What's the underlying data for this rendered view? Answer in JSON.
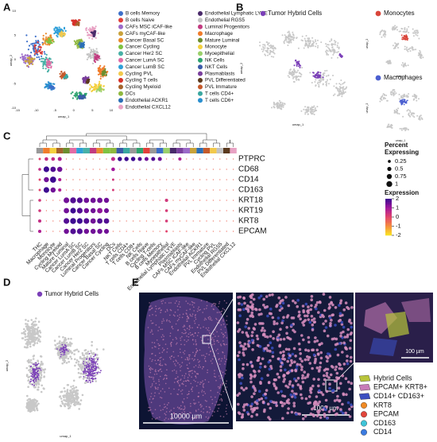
{
  "panel_a": {
    "label": "A",
    "x_axis": "umap_1",
    "y_axis": "umap_2",
    "xticks": [
      -15,
      -10,
      -5,
      0,
      5,
      10
    ],
    "yticks": [
      -10,
      -5,
      0,
      5,
      10
    ],
    "legend": [
      {
        "name": "B cells Memory",
        "color": "#3d6fc9"
      },
      {
        "name": "B cells Naive",
        "color": "#e2403a"
      },
      {
        "name": "CAFs MSC iCAF-like",
        "color": "#9b6ac8"
      },
      {
        "name": "CAFs myCAF-like",
        "color": "#c9a23a"
      },
      {
        "name": "Cancer Basal SC",
        "color": "#e98a2f"
      },
      {
        "name": "Cancer Cycling",
        "color": "#7fc241"
      },
      {
        "name": "Cancer Her2 SC",
        "color": "#48b0a6"
      },
      {
        "name": "Cancer LumA SC",
        "color": "#e26ba5"
      },
      {
        "name": "Cancer LumB SC",
        "color": "#2f9fd8"
      },
      {
        "name": "Cycling PVL",
        "color": "#f2c94c"
      },
      {
        "name": "Cycling T cells",
        "color": "#d7312a"
      },
      {
        "name": "Cycling Myeloid",
        "color": "#a5632c"
      },
      {
        "name": "DCs",
        "color": "#8fb83e"
      },
      {
        "name": "Endothelial ACKR1",
        "color": "#2b6fb6"
      },
      {
        "name": "Endothelial CXCL12",
        "color": "#e8a2c4"
      },
      {
        "name": "Endothelial Lymphatic LYVE",
        "color": "#4a2a6a"
      },
      {
        "name": "Endothelial RGS5",
        "color": "#c2c2c2"
      },
      {
        "name": "Luminal Progenitors",
        "color": "#c23b80"
      },
      {
        "name": "Macrophage",
        "color": "#f07c2b"
      },
      {
        "name": "Mature Luminal",
        "color": "#6b8e2f"
      },
      {
        "name": "Monocyte",
        "color": "#f4d03f"
      },
      {
        "name": "Myoepithelial",
        "color": "#9ad06a"
      },
      {
        "name": "NK Cells",
        "color": "#2ea36f"
      },
      {
        "name": "NKT Cells",
        "color": "#3b5ba8"
      },
      {
        "name": "Plasmablasts",
        "color": "#7a3f9d"
      },
      {
        "name": "PVL Differentiated",
        "color": "#5b3a1e"
      },
      {
        "name": "PVL Immature",
        "color": "#c55a2b"
      },
      {
        "name": "T cells CD4+",
        "color": "#3aa7a0"
      },
      {
        "name": "T cells CD6+",
        "color": "#2a8fcf"
      }
    ]
  },
  "panel_b": {
    "label": "B",
    "title": "Tumor Hybrid Cells",
    "color": "#7b3fb8",
    "x_axis": "umap_1",
    "y_axis": "umap_2",
    "insets": [
      {
        "title": "Monocytes",
        "color": "#d9453a"
      },
      {
        "title": "Macrophages",
        "color": "#4b5fd0"
      }
    ]
  },
  "panel_c": {
    "label": "C",
    "genes": [
      "PTPRC",
      "CD68",
      "CD14",
      "CD163",
      "KRT18",
      "KRT19",
      "KRT8",
      "EPCAM"
    ],
    "cell_types": [
      "THC",
      "Macrophage",
      "Monocyte",
      "Cycling Myeloid",
      "Mature Luminal",
      "Cancer LumA SC",
      "Cancer LumB SC",
      "Cancer Her2 SC",
      "Luminal Progenitors",
      "Cancer Basal SC",
      "Cancer Cycling",
      "DCs",
      "NKT Cells",
      "T cells CD4+",
      "T cells CD8+",
      "NK Cells",
      "B cells Naive",
      "Cycling T-cells",
      "B cells Memory",
      "Myoepithelial",
      "Endothelial Lymphatic LYVE",
      "Plasmablasts",
      "CAFs MSC iCAF-like",
      "CAFs myCAF-like",
      "Endothelial ACKR1",
      "PVL Immature",
      "Cycling PVL",
      "Endothelial RGS5",
      "PVL Differentiated",
      "Endothelial CXCL12"
    ],
    "percent": [
      [
        0.1,
        0.25,
        0.25,
        0.3,
        0.02,
        0.02,
        0.02,
        0.02,
        0.02,
        0.02,
        0.02,
        0.3,
        0.35,
        0.35,
        0.35,
        0.3,
        0.3,
        0.3,
        0.3,
        0.02,
        0.02,
        0.2,
        0.02,
        0.02,
        0.02,
        0.02,
        0.02,
        0.02,
        0.02,
        0.02
      ],
      [
        0.15,
        0.6,
        0.55,
        0.5,
        0.02,
        0.02,
        0.02,
        0.02,
        0.02,
        0.02,
        0.02,
        0.25,
        0.02,
        0.02,
        0.02,
        0.02,
        0.02,
        0.02,
        0.02,
        0.02,
        0.02,
        0.02,
        0.02,
        0.02,
        0.02,
        0.02,
        0.02,
        0.02,
        0.02,
        0.02
      ],
      [
        0.1,
        0.5,
        0.7,
        0.2,
        0.02,
        0.02,
        0.02,
        0.02,
        0.02,
        0.02,
        0.02,
        0.1,
        0.02,
        0.02,
        0.02,
        0.02,
        0.02,
        0.02,
        0.02,
        0.02,
        0.02,
        0.02,
        0.02,
        0.02,
        0.02,
        0.02,
        0.02,
        0.02,
        0.02,
        0.02
      ],
      [
        0.1,
        0.6,
        0.5,
        0.2,
        0.02,
        0.02,
        0.02,
        0.02,
        0.02,
        0.02,
        0.02,
        0.1,
        0.02,
        0.02,
        0.02,
        0.02,
        0.02,
        0.02,
        0.02,
        0.02,
        0.02,
        0.02,
        0.02,
        0.02,
        0.02,
        0.02,
        0.02,
        0.02,
        0.02,
        0.02
      ],
      [
        0.15,
        0.02,
        0.02,
        0.02,
        0.6,
        0.65,
        0.6,
        0.55,
        0.55,
        0.55,
        0.5,
        0.02,
        0.02,
        0.02,
        0.02,
        0.02,
        0.02,
        0.02,
        0.02,
        0.2,
        0.02,
        0.02,
        0.02,
        0.02,
        0.02,
        0.02,
        0.02,
        0.02,
        0.02,
        0.02
      ],
      [
        0.15,
        0.02,
        0.02,
        0.02,
        0.55,
        0.6,
        0.6,
        0.5,
        0.5,
        0.55,
        0.45,
        0.02,
        0.02,
        0.02,
        0.02,
        0.02,
        0.02,
        0.02,
        0.02,
        0.15,
        0.02,
        0.02,
        0.02,
        0.02,
        0.02,
        0.02,
        0.02,
        0.02,
        0.02,
        0.02
      ],
      [
        0.2,
        0.02,
        0.02,
        0.02,
        0.6,
        0.65,
        0.6,
        0.6,
        0.55,
        0.55,
        0.55,
        0.02,
        0.02,
        0.02,
        0.02,
        0.02,
        0.02,
        0.02,
        0.02,
        0.15,
        0.02,
        0.02,
        0.02,
        0.02,
        0.02,
        0.02,
        0.02,
        0.02,
        0.02,
        0.02
      ],
      [
        0.2,
        0.02,
        0.02,
        0.02,
        0.5,
        0.6,
        0.6,
        0.5,
        0.5,
        0.5,
        0.45,
        0.02,
        0.02,
        0.02,
        0.02,
        0.02,
        0.02,
        0.02,
        0.02,
        0.1,
        0.02,
        0.02,
        0.02,
        0.02,
        0.02,
        0.02,
        0.02,
        0.02,
        0.02,
        0.02
      ]
    ],
    "expression": [
      [
        0,
        0.5,
        0.5,
        0.8,
        -0.5,
        -0.5,
        -0.5,
        -0.5,
        -0.5,
        -0.5,
        -0.5,
        0.6,
        2,
        2,
        2,
        1.8,
        1.5,
        1.8,
        1.5,
        -0.5,
        -0.5,
        0.8,
        -0.5,
        -0.5,
        -0.5,
        -0.5,
        -0.5,
        -0.5,
        -0.5,
        -0.5
      ],
      [
        0.5,
        2,
        1.8,
        1.5,
        -0.5,
        -0.5,
        -0.5,
        -0.5,
        -0.5,
        -0.5,
        -0.5,
        1,
        -0.5,
        -0.5,
        -0.5,
        -0.5,
        -0.5,
        -0.5,
        -0.5,
        -0.5,
        -0.5,
        -0.5,
        -0.5,
        -0.5,
        -0.5,
        -0.5,
        -0.5,
        -0.5,
        -0.5,
        -0.5
      ],
      [
        0,
        1.5,
        2,
        0.8,
        -0.5,
        -0.5,
        -0.5,
        -0.5,
        -0.5,
        -0.5,
        -0.5,
        0.3,
        -0.5,
        -0.5,
        -0.5,
        -0.5,
        -0.5,
        -0.5,
        -0.5,
        -0.5,
        -0.5,
        -0.5,
        -0.5,
        -0.5,
        -0.5,
        -0.5,
        -0.5,
        -0.5,
        -0.5,
        -0.5
      ],
      [
        0,
        2,
        1.5,
        0.8,
        -0.5,
        -0.5,
        -0.5,
        -0.5,
        -0.5,
        -0.5,
        -0.5,
        0.2,
        -0.5,
        -0.5,
        -0.5,
        -0.5,
        -0.5,
        -0.5,
        -0.5,
        -0.5,
        -0.5,
        -0.5,
        -0.5,
        -0.5,
        -0.5,
        -0.5,
        -0.5,
        -0.5,
        -0.5,
        -0.5
      ],
      [
        0.3,
        -0.5,
        -0.5,
        -0.5,
        1.5,
        1.8,
        1.8,
        1.5,
        1.5,
        1.5,
        1.5,
        -0.5,
        -0.5,
        -0.5,
        -0.5,
        -0.5,
        -0.5,
        -0.5,
        -0.5,
        0.3,
        -0.5,
        -0.5,
        -0.5,
        -0.5,
        -0.5,
        -0.5,
        -0.5,
        -0.5,
        -0.5,
        -0.5
      ],
      [
        0.3,
        -0.5,
        -0.5,
        -0.5,
        1.5,
        2,
        1.8,
        1.5,
        1.5,
        1.2,
        1.5,
        -0.5,
        -0.5,
        -0.5,
        -0.5,
        -0.5,
        -0.5,
        -0.5,
        -0.5,
        0.2,
        -0.5,
        -0.5,
        -0.5,
        -0.5,
        -0.5,
        -0.5,
        -0.5,
        -0.5,
        -0.5,
        -0.5
      ],
      [
        0.5,
        -0.5,
        -0.5,
        -0.5,
        1.8,
        2,
        2,
        1.8,
        1.5,
        1.8,
        1.8,
        -0.5,
        -0.5,
        -0.5,
        -0.5,
        -0.5,
        -0.5,
        -0.5,
        -0.5,
        0.2,
        -0.5,
        -0.5,
        -0.5,
        -0.5,
        -0.5,
        -0.5,
        -0.5,
        -0.5,
        -0.5,
        -0.5
      ],
      [
        0.8,
        -0.5,
        -0.5,
        -0.5,
        1.5,
        1.8,
        1.8,
        1.5,
        1.5,
        1.5,
        1.5,
        -0.5,
        -0.5,
        -0.5,
        -0.5,
        -0.5,
        -0.5,
        -0.5,
        -0.5,
        0,
        -0.5,
        -0.5,
        -0.5,
        -0.5,
        -0.5,
        -0.5,
        -0.5,
        -0.5,
        -0.5,
        -0.5
      ]
    ],
    "size_legend_title": [
      "Percent",
      "Expressing"
    ],
    "size_ticks": [
      0.25,
      0.5,
      0.75,
      1
    ],
    "color_legend_title": "Expression",
    "color_ticks": [
      2,
      1,
      0,
      -1,
      -2
    ]
  },
  "panel_d": {
    "label": "D",
    "title": "Tumor Hybrid Cells",
    "color": "#7b3fb8",
    "x_axis": "umap_1",
    "y_axis": "umap_2"
  },
  "panel_e": {
    "label": "E",
    "legend": [
      {
        "name": "Hybrid Cells",
        "color": "#b8c43a",
        "shape": "polygon"
      },
      {
        "name": "EPCAM+ KRT8+",
        "color": "#c77bb8",
        "shape": "polygon"
      },
      {
        "name": "CD14+ CD163+",
        "color": "#3b4fc0",
        "shape": "polygon"
      },
      {
        "name": "KRT8",
        "color": "#f08a24",
        "shape": "circle"
      },
      {
        "name": "EPCAM",
        "color": "#e2453a",
        "shape": "circle"
      },
      {
        "name": "CD163",
        "color": "#3fc4d8",
        "shape": "circle"
      },
      {
        "name": "CD14",
        "color": "#3b7be0",
        "shape": "circle"
      }
    ],
    "scale_bars": [
      "10000 µm",
      "1000 µm",
      "100 µm"
    ]
  }
}
